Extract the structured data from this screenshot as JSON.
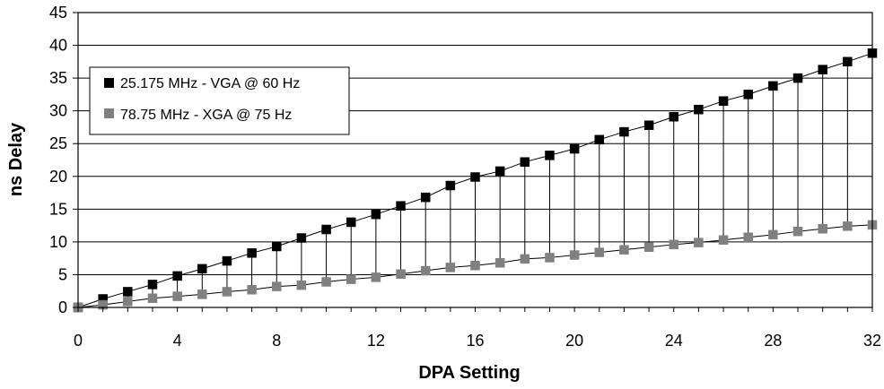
{
  "chart_data": {
    "type": "line",
    "title": "",
    "xlabel": "DPA Setting",
    "ylabel": "ns Delay",
    "xlim": [
      0,
      32
    ],
    "ylim": [
      0,
      45
    ],
    "xticks": [
      0,
      4,
      8,
      12,
      16,
      20,
      24,
      28,
      32
    ],
    "yticks": [
      0,
      5,
      10,
      15,
      20,
      25,
      30,
      35,
      40,
      45
    ],
    "grid": "horizontal",
    "legend_position": "upper-left",
    "x": [
      0,
      1,
      2,
      3,
      4,
      5,
      6,
      7,
      8,
      9,
      10,
      11,
      12,
      13,
      14,
      15,
      16,
      17,
      18,
      19,
      20,
      21,
      22,
      23,
      24,
      25,
      26,
      27,
      28,
      29,
      30,
      31,
      32
    ],
    "series": [
      {
        "name": "25.175 MHz - VGA @ 60 Hz",
        "color": "#000000",
        "values": [
          0,
          1.3,
          2.4,
          3.5,
          4.8,
          5.9,
          7.1,
          8.3,
          9.3,
          10.6,
          11.9,
          13.0,
          14.2,
          15.5,
          16.8,
          18.6,
          19.9,
          20.8,
          22.2,
          23.2,
          24.2,
          25.6,
          26.8,
          27.8,
          29.1,
          30.2,
          31.5,
          32.5,
          33.8,
          35.0,
          36.3,
          37.5,
          38.8
        ]
      },
      {
        "name": "78.75 MHz - XGA @ 75 Hz",
        "color": "#808080",
        "values": [
          0,
          0.4,
          0.9,
          1.4,
          1.7,
          2.0,
          2.4,
          2.7,
          3.2,
          3.4,
          3.9,
          4.3,
          4.6,
          5.1,
          5.6,
          6.1,
          6.4,
          6.8,
          7.4,
          7.6,
          8.0,
          8.4,
          8.8,
          9.2,
          9.6,
          9.9,
          10.3,
          10.7,
          11.1,
          11.6,
          12.0,
          12.4,
          12.6
        ]
      }
    ],
    "drop_lines": true
  }
}
